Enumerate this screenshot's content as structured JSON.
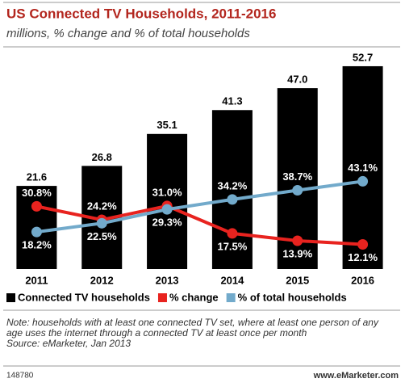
{
  "chart_data": {
    "type": "bar",
    "title": "US Connected TV Households, 2011-2016",
    "subtitle": "millions, % change and % of total households",
    "categories": [
      "2011",
      "2012",
      "2013",
      "2014",
      "2015",
      "2016"
    ],
    "series": [
      {
        "name": "Connected TV households",
        "type": "bar",
        "color": "#000000",
        "values": [
          21.6,
          26.8,
          35.1,
          41.3,
          47.0,
          52.7
        ],
        "value_labels": [
          "21.6",
          "26.8",
          "35.1",
          "41.3",
          "47.0",
          "52.7"
        ]
      },
      {
        "name": "% change",
        "type": "line",
        "axis": "y2",
        "color": "#e8231f",
        "values": [
          30.8,
          24.2,
          31.0,
          17.5,
          13.9,
          12.1
        ],
        "value_labels": [
          "30.8%",
          "24.2%",
          "31.0%",
          "17.5%",
          "13.9%",
          "12.1%"
        ]
      },
      {
        "name": "% of total households",
        "type": "line",
        "axis": "y2",
        "color": "#72aacb",
        "values": [
          18.2,
          22.5,
          29.3,
          34.2,
          38.7,
          43.1
        ],
        "value_labels": [
          "18.2%",
          "22.5%",
          "29.3%",
          "34.2%",
          "38.7%",
          "43.1%"
        ]
      }
    ],
    "ylim": [
      0,
      55
    ],
    "y2lim": [
      0,
      104
    ],
    "note": "Note: households with at least one connected TV set, where at least one person of any age uses the internet through a connected TV at least once per month",
    "source": "Source: eMarketer, Jan 2013",
    "chart_id": "148780",
    "brand": "www.eMarketer.com"
  }
}
